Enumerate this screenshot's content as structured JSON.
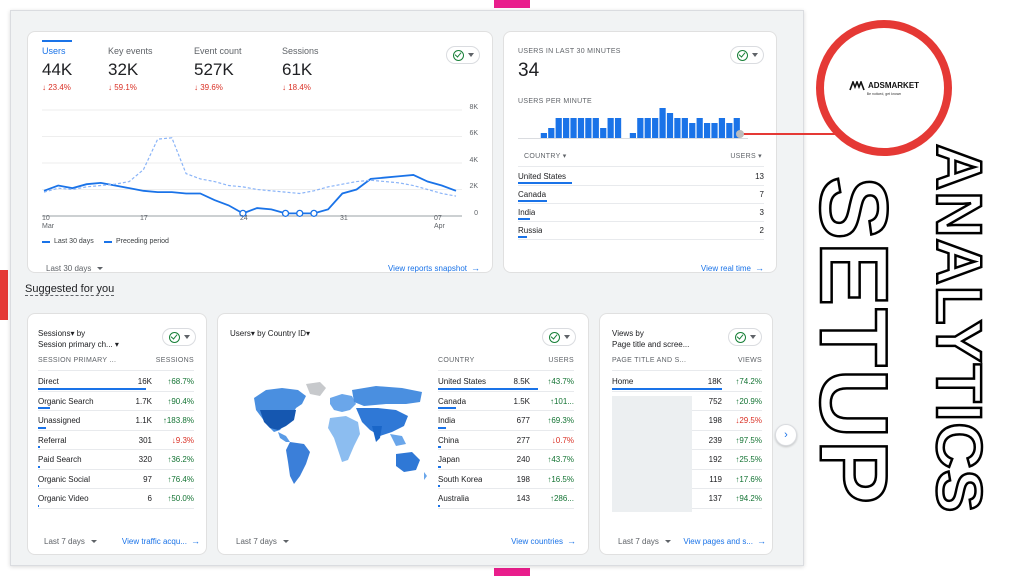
{
  "overlay": {
    "logo_text": "ADSMARKET",
    "logo_tagline": "Be noticed, get known",
    "word_analytics": "ANALYTICS",
    "word_setup": "SETUP"
  },
  "overview": {
    "metrics": [
      {
        "label": "Users",
        "value": "44K",
        "change": "↓ 23.4%"
      },
      {
        "label": "Key events",
        "value": "32K",
        "change": "↓ 59.1%"
      },
      {
        "label": "Event count",
        "value": "527K",
        "change": "↓ 39.6%"
      },
      {
        "label": "Sessions",
        "value": "61K",
        "change": "↓ 18.4%"
      }
    ],
    "y_ticks": [
      "8K",
      "6K",
      "4K",
      "2K",
      "0"
    ],
    "x_ticks": [
      {
        "day": "10",
        "month": "Mar"
      },
      {
        "day": "17",
        "month": ""
      },
      {
        "day": "24",
        "month": ""
      },
      {
        "day": "31",
        "month": ""
      },
      {
        "day": "07",
        "month": "Apr"
      }
    ],
    "legend_current": "Last 30 days",
    "legend_previous": "Preceding period",
    "date_range": "Last 30 days",
    "link": "View reports snapshot"
  },
  "chart_data": {
    "type": "line",
    "x": [
      "Mar 10",
      "Mar 11",
      "Mar 12",
      "Mar 13",
      "Mar 14",
      "Mar 15",
      "Mar 16",
      "Mar 17",
      "Mar 18",
      "Mar 19",
      "Mar 20",
      "Mar 21",
      "Mar 22",
      "Mar 23",
      "Mar 24",
      "Mar 25",
      "Mar 26",
      "Mar 27",
      "Mar 28",
      "Mar 29",
      "Mar 30",
      "Mar 31",
      "Apr 1",
      "Apr 2",
      "Apr 3",
      "Apr 4",
      "Apr 5",
      "Apr 6",
      "Apr 7",
      "Apr 8"
    ],
    "series": [
      {
        "name": "Last 30 days",
        "values": [
          1900,
          2300,
          2100,
          2400,
          2500,
          2300,
          2100,
          1900,
          1800,
          1800,
          1700,
          1700,
          1200,
          800,
          200,
          600,
          500,
          200,
          200,
          200,
          500,
          1700,
          2000,
          2800,
          2900,
          3000,
          3100,
          2600,
          2300,
          1900
        ]
      },
      {
        "name": "Preceding period",
        "values": [
          1800,
          2100,
          2000,
          2200,
          2300,
          2400,
          2600,
          3500,
          5800,
          5900,
          3200,
          2800,
          2600,
          2300,
          2200,
          2000,
          1900,
          1800,
          1700,
          1900,
          2200,
          2400,
          2600,
          2700,
          2600,
          2500,
          2300,
          2000,
          1700,
          1500
        ]
      }
    ],
    "ylim": [
      0,
      8000
    ]
  },
  "realtime": {
    "title": "USERS IN LAST 30 MINUTES",
    "value": "34",
    "per_minute_label": "USERS PER MINUTE",
    "per_minute": [
      0,
      0,
      0,
      1,
      2,
      4,
      4,
      4,
      4,
      4,
      4,
      2,
      4,
      4,
      0,
      1,
      4,
      4,
      4,
      6,
      5,
      4,
      4,
      3,
      4,
      3,
      3,
      4,
      3,
      4,
      0
    ],
    "col_country": "COUNTRY",
    "col_users": "USERS",
    "rows": [
      {
        "name": "United States",
        "value": "13",
        "share": 0.56
      },
      {
        "name": "Canada",
        "value": "7",
        "share": 0.3
      },
      {
        "name": "India",
        "value": "3",
        "share": 0.13
      },
      {
        "name": "Russia",
        "value": "2",
        "share": 0.09
      }
    ],
    "link": "View real time"
  },
  "suggested": {
    "title": "Suggested for you",
    "sessions_card": {
      "title_line1": "Sessions▾ by",
      "title_line2": "Session primary ch... ▾",
      "col_name": "SESSION PRIMARY ...",
      "col_value": "SESSIONS",
      "rows": [
        {
          "name": "Direct",
          "value": "16K",
          "change": "↑68.7%",
          "dir": "up",
          "share": 1.0
        },
        {
          "name": "Organic Search",
          "value": "1.7K",
          "change": "↑90.4%",
          "dir": "up",
          "share": 0.11
        },
        {
          "name": "Unassigned",
          "value": "1.1K",
          "change": "↑183.8%",
          "dir": "up",
          "share": 0.07
        },
        {
          "name": "Referral",
          "value": "301",
          "change": "↓9.3%",
          "dir": "down",
          "share": 0.02
        },
        {
          "name": "Paid Search",
          "value": "320",
          "change": "↑36.2%",
          "dir": "up",
          "share": 0.02
        },
        {
          "name": "Organic Social",
          "value": "97",
          "change": "↑76.4%",
          "dir": "up",
          "share": 0.01
        },
        {
          "name": "Organic Video",
          "value": "6",
          "change": "↑50.0%",
          "dir": "up",
          "share": 0.005
        }
      ],
      "date_range": "Last 7 days",
      "link": "View traffic acqu..."
    },
    "countries_card": {
      "title": "Users▾ by Country ID▾",
      "col_name": "COUNTRY",
      "col_value": "USERS",
      "rows": [
        {
          "name": "United States",
          "value": "8.5K",
          "change": "↑43.7%",
          "dir": "up",
          "share": 1.0
        },
        {
          "name": "Canada",
          "value": "1.5K",
          "change": "↑101...",
          "dir": "up",
          "share": 0.18
        },
        {
          "name": "India",
          "value": "677",
          "change": "↑69.3%",
          "dir": "up",
          "share": 0.08
        },
        {
          "name": "China",
          "value": "277",
          "change": "↓0.7%",
          "dir": "down",
          "share": 0.03
        },
        {
          "name": "Japan",
          "value": "240",
          "change": "↑43.7%",
          "dir": "up",
          "share": 0.03
        },
        {
          "name": "South Korea",
          "value": "198",
          "change": "↑16.5%",
          "dir": "up",
          "share": 0.02
        },
        {
          "name": "Australia",
          "value": "143",
          "change": "↑286...",
          "dir": "up",
          "share": 0.02
        }
      ],
      "date_range": "Last 7 days",
      "link": "View countries"
    },
    "pages_card": {
      "title_line1": "Views by",
      "title_line2": "Page title and scree...",
      "col_name": "PAGE TITLE AND S...",
      "col_value": "VIEWS",
      "rows": [
        {
          "name": "Home",
          "value": "18K",
          "change": "↑74.2%",
          "dir": "up",
          "share": 1.0
        },
        {
          "name": "",
          "value": "752",
          "change": "↑20.9%",
          "dir": "up",
          "share": 0.04
        },
        {
          "name": "",
          "value": "198",
          "change": "↓29.5%",
          "dir": "down",
          "share": 0.01
        },
        {
          "name": "",
          "value": "239",
          "change": "↑97.5%",
          "dir": "up",
          "share": 0.01
        },
        {
          "name": "",
          "value": "192",
          "change": "↑25.5%",
          "dir": "up",
          "share": 0.01
        },
        {
          "name": "",
          "value": "119",
          "change": "↑17.6%",
          "dir": "up",
          "share": 0.01
        },
        {
          "name": "",
          "value": "137",
          "change": "↑94.2%",
          "dir": "up",
          "share": 0.01
        }
      ],
      "date_range": "Last 7 days",
      "link": "View pages and s..."
    }
  }
}
